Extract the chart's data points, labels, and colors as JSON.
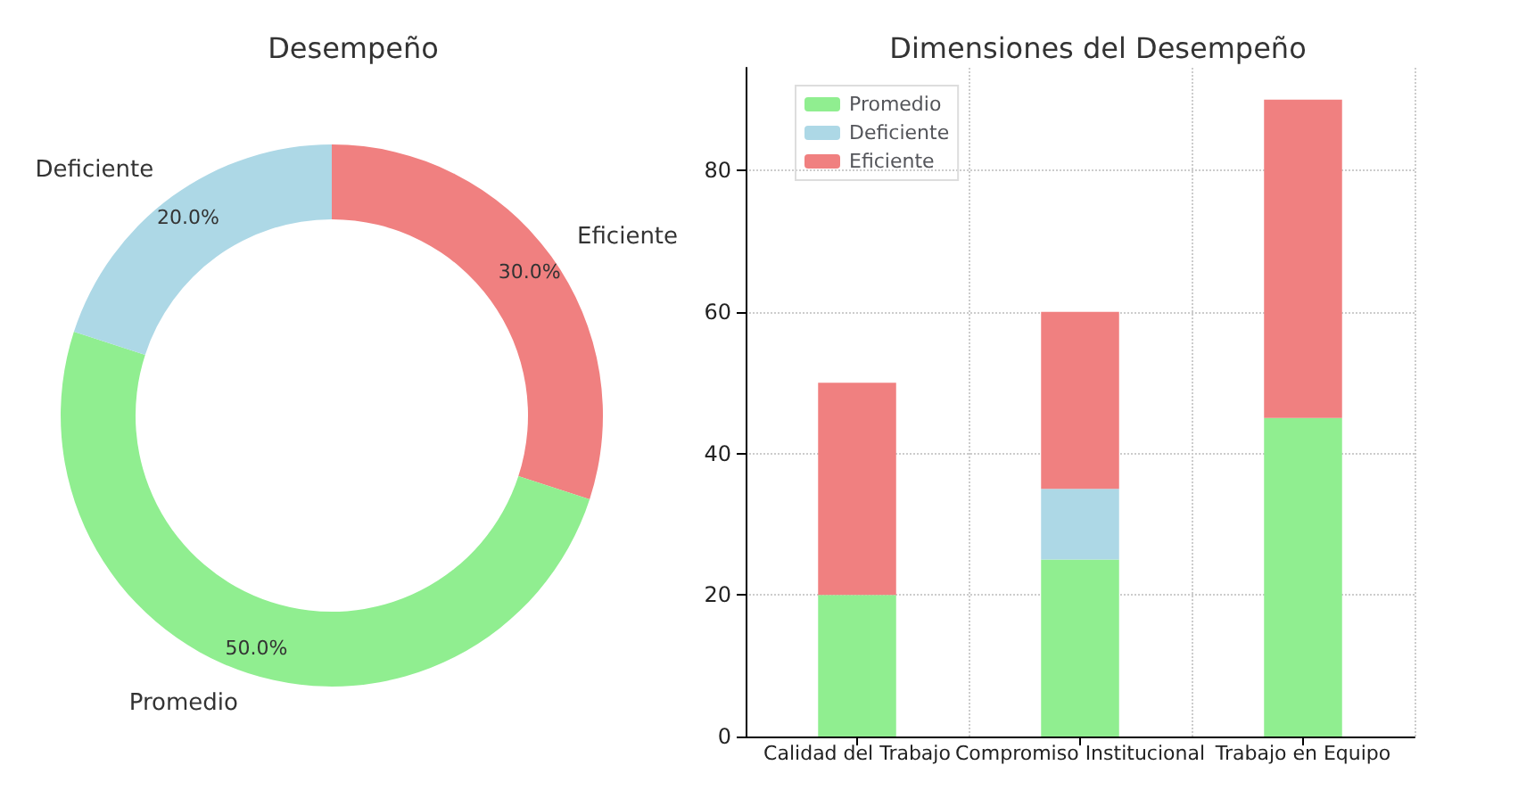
{
  "chart_data": [
    {
      "type": "donut",
      "title": "Desempeño",
      "categories": [
        "Eficiente",
        "Promedio",
        "Deficiente"
      ],
      "values": [
        30,
        50,
        20
      ],
      "colors": [
        "#f08080",
        "#90ee90",
        "#add8e6"
      ],
      "value_labels": [
        "30.0%",
        "50.0%",
        "20.0%"
      ]
    },
    {
      "type": "bar",
      "title": "Dimensiones del Desempeño",
      "categories": [
        "Calidad del Trabajo",
        "Compromiso Institucional",
        "Trabajo en Equipo"
      ],
      "stacked": true,
      "series": [
        {
          "name": "Promedio",
          "color": "#90ee90",
          "values": [
            20,
            25,
            45
          ]
        },
        {
          "name": "Deficiente",
          "color": "#add8e6",
          "values": [
            0,
            10,
            0
          ]
        },
        {
          "name": "Eficiente",
          "color": "#f08080",
          "values": [
            30,
            25,
            45
          ]
        }
      ],
      "ylim": [
        0,
        94.5
      ],
      "yticks": [
        0,
        20,
        40,
        60,
        80
      ],
      "grid": true,
      "legend": "top left"
    }
  ]
}
